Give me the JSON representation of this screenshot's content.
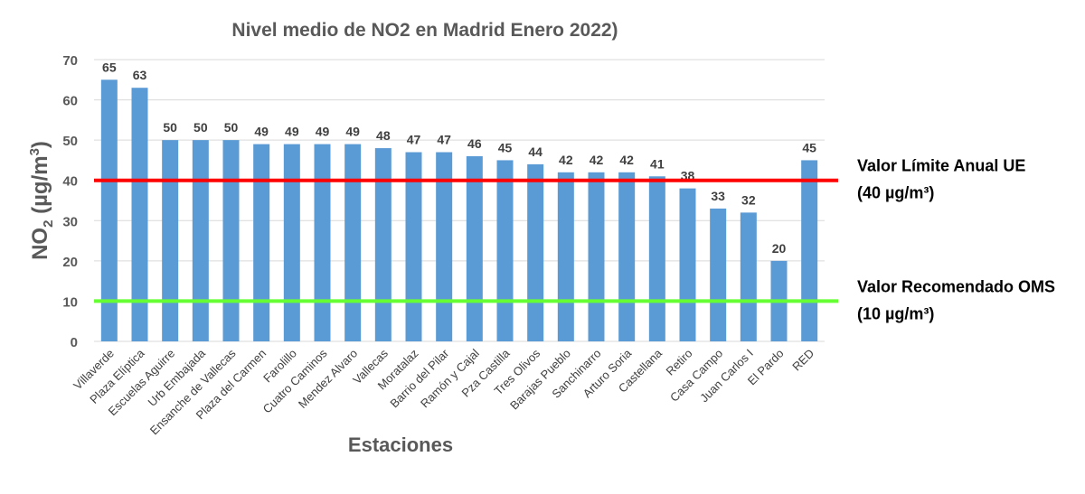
{
  "chart_data": {
    "type": "bar",
    "title": "Nivel medio de NO2 en Madrid Enero 2022)",
    "xlabel": "Estaciones",
    "ylabel_main": "NO",
    "ylabel_sub": "2",
    "ylabel_unit": " (µg/m",
    "ylabel_sup": "3",
    "ylabel_close": ")",
    "ylim": [
      0,
      70
    ],
    "yticks": [
      0,
      10,
      20,
      30,
      40,
      50,
      60,
      70
    ],
    "grid": true,
    "categories": [
      "Villaverde",
      "Plaza Elíptica",
      "Escuelas Aguirre",
      "Urb Embajada",
      "Ensanche de Vallecas",
      "Plaza del Carmen",
      "Farolillo",
      "Cuatro Caminos",
      "Mendez Alvaro",
      "Vallecas",
      "Moratalaz",
      "Barrio del Pilar",
      "Ramón y Cajal",
      "Pza Castilla",
      "Tres Olivos",
      "Barajas Pueblo",
      "Sanchinarro",
      "Arturo Soria",
      "Castellana",
      "Retiro",
      "Casa Campo",
      "Juan Carlos I",
      "El Pardo",
      "RED"
    ],
    "values": [
      65,
      63,
      50,
      50,
      50,
      49,
      49,
      49,
      49,
      48,
      47,
      47,
      46,
      45,
      44,
      42,
      42,
      42,
      41,
      38,
      33,
      32,
      20,
      45
    ],
    "bar_color": "#5b9bd5",
    "reference_lines": [
      {
        "value": 40,
        "color": "#ff0000",
        "label": "Valor Límite Anual UE",
        "sublabel": "(40 µg/m³)"
      },
      {
        "value": 10,
        "color": "#66ff33",
        "label": "Valor Recomendado OMS",
        "sublabel": "(10 µg/m³)"
      }
    ]
  }
}
